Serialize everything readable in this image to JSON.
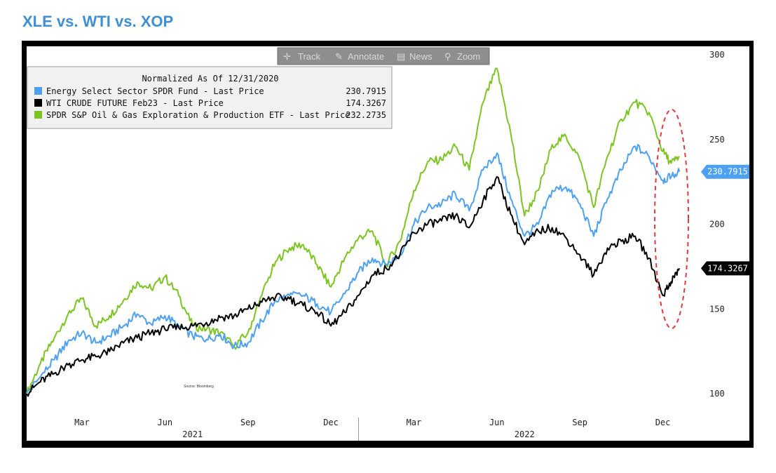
{
  "page": {
    "title": "XLE vs. WTI vs. XOP"
  },
  "toolbar": {
    "items": [
      {
        "label": "Track",
        "icon": "crosshair-icon"
      },
      {
        "label": "Annotate",
        "icon": "pencil-icon"
      },
      {
        "label": "News",
        "icon": "news-icon"
      },
      {
        "label": "Zoom",
        "icon": "magnifier-icon"
      }
    ]
  },
  "legend": {
    "title": "Normalized As Of 12/31/2020",
    "entries": [
      {
        "label": "Energy Select Sector SPDR Fund - Last Price",
        "value": "230.7915",
        "color": "#4ea1f0"
      },
      {
        "label": "WTI CRUDE FUTURE Feb23 - Last Price",
        "value": "174.3267",
        "color": "#000000"
      },
      {
        "label": "SPDR S&P Oil & Gas Exploration & Production ETF - Last Price",
        "value": "232.2735",
        "color": "#7cc520"
      }
    ]
  },
  "source_note": "Source: Bloomberg",
  "chart_data": {
    "type": "line",
    "ylim": [
      88,
      305
    ],
    "xlim": [
      0,
      24
    ],
    "yticks": [
      100,
      150,
      200,
      250,
      300
    ],
    "x_ticks": [
      {
        "x": 2,
        "label": "Mar"
      },
      {
        "x": 5,
        "label": "Jun"
      },
      {
        "x": 8,
        "label": "Sep"
      },
      {
        "x": 11,
        "label": "Dec"
      },
      {
        "x": 14,
        "label": "Mar"
      },
      {
        "x": 17,
        "label": "Jun"
      },
      {
        "x": 20,
        "label": "Sep"
      },
      {
        "x": 23,
        "label": "Dec"
      }
    ],
    "year_labels": [
      {
        "x": 6,
        "label": "2021"
      },
      {
        "x": 18,
        "label": "2022"
      }
    ],
    "series": [
      {
        "name": "SPDR S&P Oil & Gas Exploration & Production ETF - Last Price",
        "color": "#7cc520",
        "x": [
          0,
          0.5,
          1,
          1.5,
          2,
          2.5,
          3,
          3.5,
          4,
          4.5,
          5,
          5.5,
          6,
          6.5,
          7,
          7.5,
          8,
          8.5,
          9,
          9.5,
          10,
          10.5,
          11,
          11.5,
          12,
          12.5,
          13,
          13.5,
          14,
          14.5,
          15,
          15.5,
          16,
          16.5,
          17,
          17.5,
          18,
          18.5,
          19,
          19.5,
          20,
          20.5,
          21,
          21.5,
          22,
          22.5,
          23,
          23.3,
          23.6
        ],
        "values": [
          100,
          118,
          133,
          147,
          156,
          140,
          146,
          155,
          166,
          162,
          169,
          158,
          140,
          138,
          136,
          128,
          136,
          158,
          178,
          186,
          188,
          176,
          163,
          180,
          192,
          196,
          176,
          190,
          220,
          237,
          238,
          246,
          232,
          272,
          292,
          254,
          205,
          220,
          247,
          252,
          238,
          210,
          240,
          262,
          272,
          266,
          243,
          236,
          240
        ]
      },
      {
        "name": "Energy Select Sector SPDR Fund - Last Price",
        "color": "#4ea1f0",
        "x": [
          0,
          0.5,
          1,
          1.5,
          2,
          2.5,
          3,
          3.5,
          4,
          4.5,
          5,
          5.5,
          6,
          6.5,
          7,
          7.5,
          8,
          8.5,
          9,
          9.5,
          10,
          10.5,
          11,
          11.5,
          12,
          12.5,
          13,
          13.5,
          14,
          14.5,
          15,
          15.5,
          16,
          16.5,
          17,
          17.5,
          18,
          18.5,
          19,
          19.5,
          20,
          20.5,
          21,
          21.5,
          22,
          22.5,
          23,
          23.3,
          23.6
        ],
        "values": [
          100,
          110,
          120,
          131,
          136,
          130,
          134,
          140,
          147,
          141,
          146,
          140,
          134,
          132,
          135,
          128,
          130,
          143,
          155,
          158,
          158,
          153,
          148,
          159,
          172,
          180,
          176,
          182,
          200,
          210,
          212,
          218,
          208,
          232,
          242,
          215,
          193,
          200,
          220,
          222,
          212,
          193,
          215,
          232,
          246,
          240,
          226,
          228,
          231
        ]
      },
      {
        "name": "WTI CRUDE FUTURE Feb23 - Last Price",
        "color": "#000000",
        "x": [
          0,
          0.5,
          1,
          1.5,
          2,
          2.5,
          3,
          3.5,
          4,
          4.5,
          5,
          5.5,
          6,
          6.5,
          7,
          7.5,
          8,
          8.5,
          9,
          9.5,
          10,
          10.5,
          11,
          11.5,
          12,
          12.5,
          13,
          13.5,
          14,
          14.5,
          15,
          15.5,
          16,
          16.5,
          17,
          17.5,
          18,
          18.5,
          19,
          19.5,
          20,
          20.5,
          21,
          21.5,
          22,
          22.5,
          23,
          23.3,
          23.6
        ],
        "values": [
          100,
          107,
          112,
          117,
          120,
          122,
          125,
          130,
          133,
          136,
          138,
          139,
          140,
          142,
          145,
          146,
          150,
          154,
          157,
          156,
          152,
          148,
          140,
          148,
          158,
          170,
          174,
          182,
          195,
          200,
          202,
          205,
          198,
          214,
          228,
          206,
          188,
          196,
          198,
          192,
          182,
          170,
          186,
          190,
          193,
          180,
          158,
          166,
          174
        ]
      }
    ],
    "end_labels": [
      {
        "value": "230.7915",
        "y": 231,
        "background": "#4ea1f0",
        "color": "#ffffff"
      },
      {
        "value": "174.3267",
        "y": 174,
        "background": "#000000",
        "color": "#ffffff"
      }
    ]
  }
}
